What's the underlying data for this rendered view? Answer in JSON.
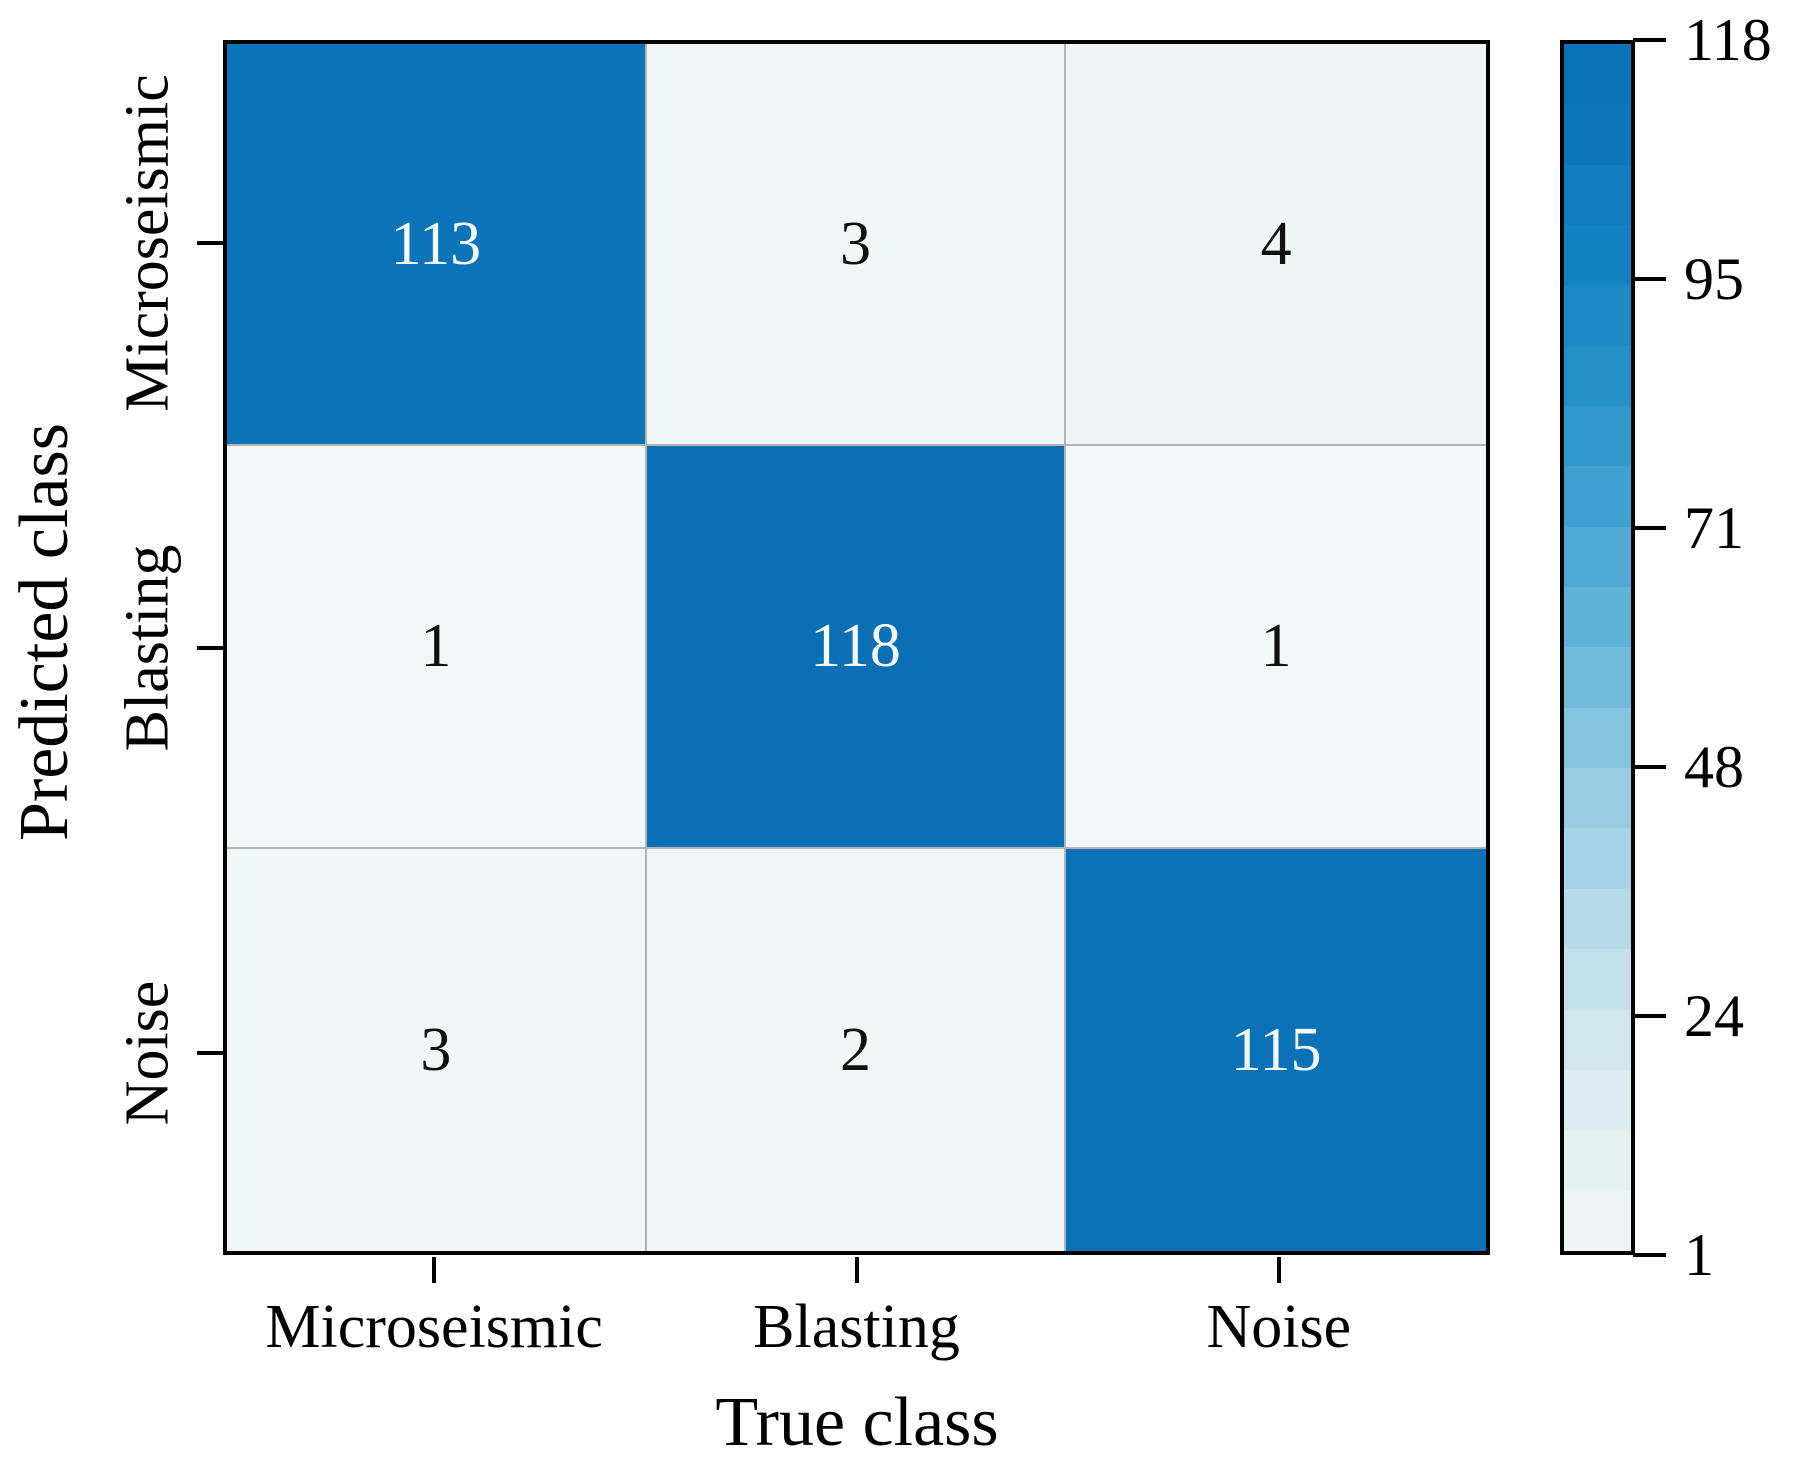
{
  "figure": {
    "x_axis_title": "True class",
    "y_axis_title": "Predicted class"
  },
  "chart_data": {
    "type": "heatmap",
    "title": "",
    "xlabel": "True class",
    "ylabel": "Predicted class",
    "x_categories": [
      "Microseismic",
      "Blasting",
      "Noise"
    ],
    "y_categories": [
      "Microseismic",
      "Blasting",
      "Noise"
    ],
    "matrix": [
      [
        113,
        3,
        4
      ],
      [
        1,
        118,
        1
      ],
      [
        3,
        2,
        115
      ]
    ],
    "value_min": 1,
    "value_max": 118,
    "colorbar_ticks": [
      118,
      95,
      71,
      48,
      24,
      1
    ],
    "colorbar_steps": 20,
    "legend_position": "right",
    "grid": "cell-borders",
    "colors": {
      "background": "#ffffff",
      "axis_frame": "#000000",
      "grid_line": "#b3b3b3",
      "text_on_dark": "#f3f8fa",
      "text_on_light": "#101010",
      "colormap": [
        [
          0.0,
          "#f2f8f7"
        ],
        [
          0.1,
          "#e2eef0"
        ],
        [
          0.2,
          "#cbe4ec"
        ],
        [
          0.3,
          "#aed7e6"
        ],
        [
          0.4,
          "#8fc8e0"
        ],
        [
          0.5,
          "#6ab6d9"
        ],
        [
          0.6,
          "#47a5d2"
        ],
        [
          0.7,
          "#2a94ca"
        ],
        [
          0.8,
          "#1485c2"
        ],
        [
          0.9,
          "#0d7abc"
        ],
        [
          1.0,
          "#0a6fb5"
        ]
      ]
    }
  }
}
